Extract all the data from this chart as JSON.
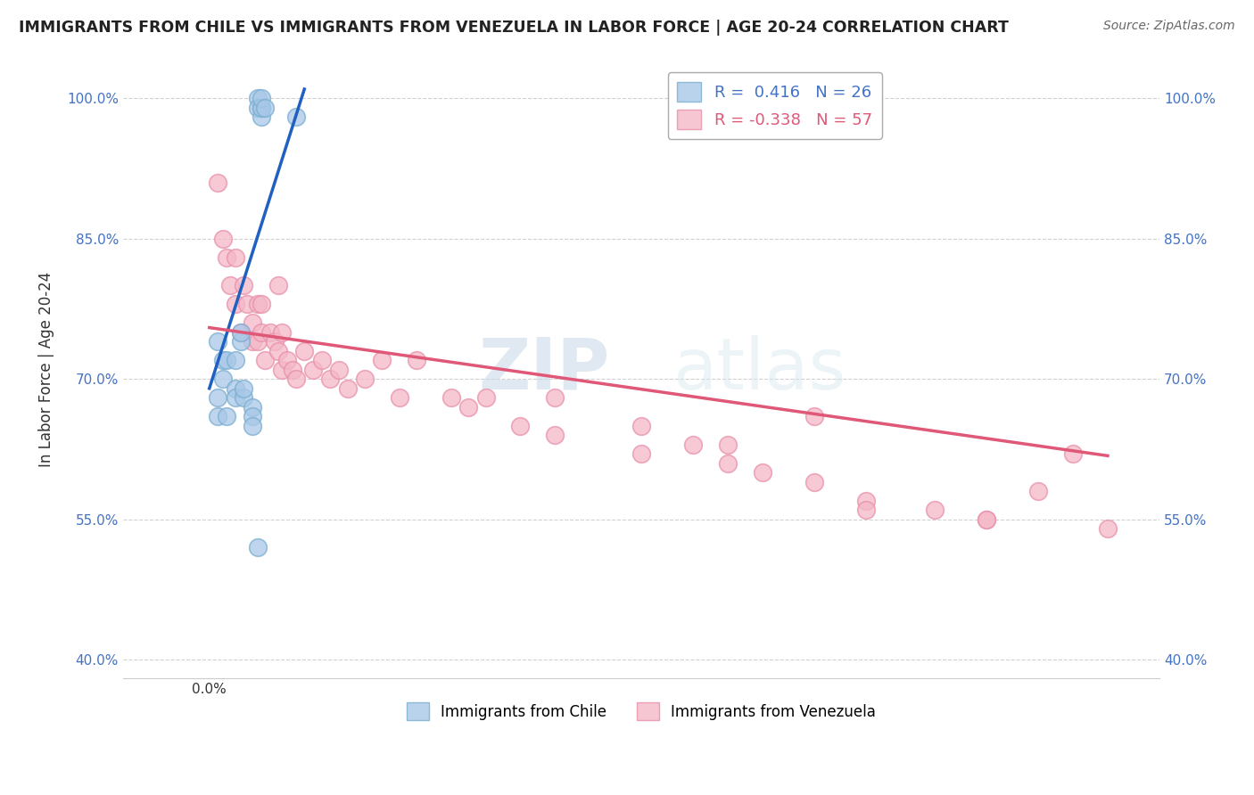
{
  "title": "IMMIGRANTS FROM CHILE VS IMMIGRANTS FROM VENEZUELA IN LABOR FORCE | AGE 20-24 CORRELATION CHART",
  "source": "Source: ZipAtlas.com",
  "ylabel": "In Labor Force | Age 20-24",
  "watermark_zip": "ZIP",
  "watermark_atlas": "atlas",
  "legend_chile_r": "R =  0.416",
  "legend_chile_n": "N = 26",
  "legend_venezuela_r": "R = -0.338",
  "legend_venezuela_n": "N = 57",
  "chile_color": "#a8c8e8",
  "venezuela_color": "#f4b8c8",
  "chile_edge_color": "#7aaed0",
  "venezuela_edge_color": "#e890aa",
  "chile_line_color": "#2060c0",
  "venezuela_line_color": "#e05878",
  "xlim": [
    -0.0005,
    0.0055
  ],
  "ylim": [
    0.38,
    1.04
  ],
  "yticks": [
    0.4,
    0.55,
    0.7,
    0.85,
    1.0
  ],
  "ytick_labels": [
    "40.0%",
    "55.0%",
    "70.0%",
    "85.0%",
    "100.0%"
  ],
  "xticks": [
    0.0,
    0.001,
    0.002,
    0.003,
    0.004,
    0.005
  ],
  "xtick_labels": [
    "0.0%",
    "",
    "",
    "",
    "",
    ""
  ],
  "chile_x": [
    0.00028,
    0.00028,
    0.0003,
    0.0003,
    0.0003,
    0.0003,
    0.00032,
    0.0005,
    5e-05,
    5e-05,
    5e-05,
    8e-05,
    8e-05,
    0.0001,
    0.0001,
    0.00015,
    0.00015,
    0.00015,
    0.00018,
    0.00018,
    0.0002,
    0.0002,
    0.00025,
    0.00025,
    0.00025,
    0.00028
  ],
  "chile_y": [
    1.0,
    0.99,
    0.99,
    0.98,
    0.99,
    1.0,
    0.99,
    0.98,
    0.74,
    0.68,
    0.66,
    0.72,
    0.7,
    0.72,
    0.66,
    0.69,
    0.72,
    0.68,
    0.74,
    0.75,
    0.68,
    0.69,
    0.67,
    0.66,
    0.65,
    0.52
  ],
  "venezuela_x": [
    5e-05,
    8e-05,
    0.0001,
    0.00012,
    0.00015,
    0.00015,
    0.00018,
    0.0002,
    0.00022,
    0.00025,
    0.00025,
    0.00028,
    0.00028,
    0.0003,
    0.0003,
    0.00032,
    0.00035,
    0.00038,
    0.0004,
    0.0004,
    0.00042,
    0.00042,
    0.00045,
    0.00048,
    0.0005,
    0.00055,
    0.0006,
    0.00065,
    0.0007,
    0.00075,
    0.0008,
    0.0009,
    0.001,
    0.0011,
    0.0012,
    0.0014,
    0.0015,
    0.0016,
    0.0018,
    0.002,
    0.0025,
    0.0028,
    0.003,
    0.0032,
    0.0035,
    0.0038,
    0.0042,
    0.0045,
    0.0048,
    0.005,
    0.0035,
    0.0038,
    0.002,
    0.0025,
    0.003,
    0.0045,
    0.0052
  ],
  "venezuela_y": [
    0.91,
    0.85,
    0.83,
    0.8,
    0.83,
    0.78,
    0.75,
    0.8,
    0.78,
    0.76,
    0.74,
    0.78,
    0.74,
    0.75,
    0.78,
    0.72,
    0.75,
    0.74,
    0.73,
    0.8,
    0.75,
    0.71,
    0.72,
    0.71,
    0.7,
    0.73,
    0.71,
    0.72,
    0.7,
    0.71,
    0.69,
    0.7,
    0.72,
    0.68,
    0.72,
    0.68,
    0.67,
    0.68,
    0.65,
    0.64,
    0.62,
    0.63,
    0.61,
    0.6,
    0.59,
    0.57,
    0.56,
    0.55,
    0.58,
    0.62,
    0.66,
    0.56,
    0.68,
    0.65,
    0.63,
    0.55,
    0.54
  ],
  "chile_trend_x": [
    0.0,
    0.00055
  ],
  "chile_trend_y": [
    0.69,
    1.01
  ],
  "venezuela_trend_x": [
    0.0,
    0.0052
  ],
  "venezuela_trend_y": [
    0.755,
    0.618
  ]
}
